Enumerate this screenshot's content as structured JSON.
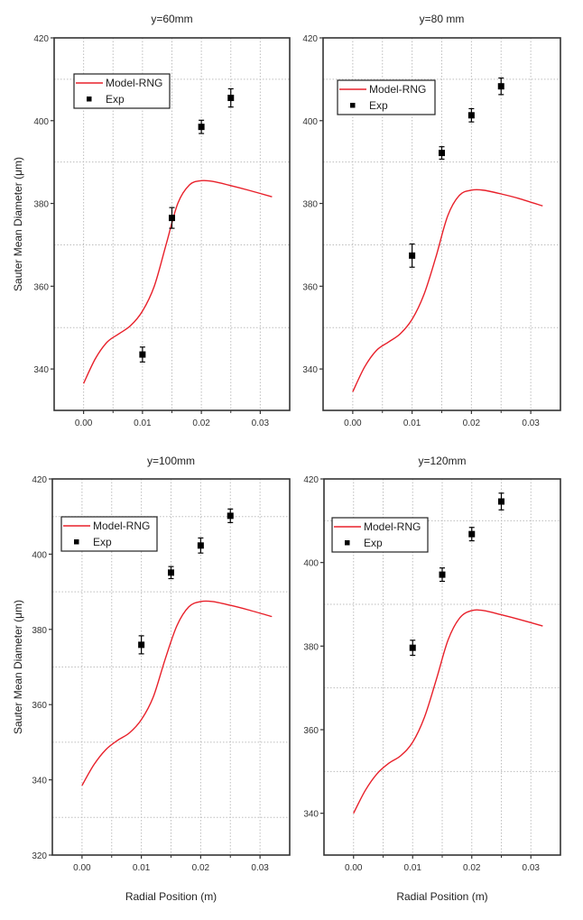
{
  "chart_data": [
    {
      "type": "line",
      "title": "y=60mm",
      "xlabel": "",
      "ylabel": "Sauter Mean Diameter (μm)",
      "xlim": [
        -0.005,
        0.035
      ],
      "ylim": [
        330,
        420
      ],
      "xticks": [
        "0.00",
        "0.01",
        "0.02",
        "0.03"
      ],
      "xtick_values": [
        0,
        0.01,
        0.02,
        0.03
      ],
      "yticks": [
        "340",
        "360",
        "380",
        "400",
        "420"
      ],
      "ytick_values": [
        340,
        360,
        380,
        400,
        420
      ],
      "grid": true,
      "legend": {
        "placement": "upper-left",
        "entries": [
          "Model-RNG",
          "Exp"
        ]
      },
      "series": [
        {
          "name": "Model-RNG",
          "kind": "line",
          "color": "#e8202a",
          "x": [
            0,
            0.002,
            0.004,
            0.006,
            0.008,
            0.01,
            0.012,
            0.014,
            0.016,
            0.018,
            0.02,
            0.022,
            0.025,
            0.028,
            0.032
          ],
          "y": [
            336.5,
            342.5,
            346.5,
            348.5,
            350.5,
            354,
            360,
            370,
            380,
            384.5,
            385.5,
            385.3,
            384.3,
            383.2,
            381.6
          ]
        },
        {
          "name": "Exp",
          "kind": "scatter",
          "color": "#000000",
          "x": [
            0.01,
            0.015,
            0.02,
            0.025
          ],
          "y": [
            343.5,
            376.5,
            398.5,
            405.5
          ],
          "err": [
            1.8,
            2.5,
            1.6,
            2.2
          ]
        }
      ]
    },
    {
      "type": "line",
      "title": "y=80 mm",
      "xlabel": "",
      "ylabel": "",
      "xlim": [
        -0.005,
        0.035
      ],
      "ylim": [
        330,
        420
      ],
      "xticks": [
        "0.00",
        "0.01",
        "0.02",
        "0.03"
      ],
      "xtick_values": [
        0,
        0.01,
        0.02,
        0.03
      ],
      "yticks": [
        "340",
        "360",
        "380",
        "400",
        "420"
      ],
      "ytick_values": [
        340,
        360,
        380,
        400,
        420
      ],
      "grid": true,
      "legend": {
        "placement": "upper-left",
        "entries": [
          "Model-RNG",
          "Exp"
        ]
      },
      "series": [
        {
          "name": "Model-RNG",
          "kind": "line",
          "color": "#e8202a",
          "x": [
            0,
            0.002,
            0.004,
            0.006,
            0.008,
            0.01,
            0.012,
            0.014,
            0.016,
            0.018,
            0.02,
            0.022,
            0.025,
            0.028,
            0.032
          ],
          "y": [
            334.5,
            340.5,
            344.5,
            346.5,
            348.5,
            352,
            358,
            367,
            377,
            382,
            383.2,
            383.2,
            382.3,
            381.2,
            379.4
          ]
        },
        {
          "name": "Exp",
          "kind": "scatter",
          "color": "#000000",
          "x": [
            0.01,
            0.015,
            0.02,
            0.025
          ],
          "y": [
            367.4,
            392.2,
            401.3,
            408.3
          ],
          "err": [
            2.8,
            1.5,
            1.6,
            2.0
          ]
        }
      ]
    },
    {
      "type": "line",
      "title": "y=100mm",
      "xlabel": "Radial Position (m)",
      "ylabel": "Sauter Mean Diameter (μm)",
      "xlim": [
        -0.005,
        0.035
      ],
      "ylim": [
        320,
        420
      ],
      "xticks": [
        "0.00",
        "0.01",
        "0.02",
        "0.03"
      ],
      "xtick_values": [
        0,
        0.01,
        0.02,
        0.03
      ],
      "yticks": [
        "320",
        "340",
        "360",
        "380",
        "400",
        "420"
      ],
      "ytick_values": [
        320,
        340,
        360,
        380,
        400,
        420
      ],
      "grid": true,
      "legend": {
        "placement": "upper-left",
        "entries": [
          "Model-RNG",
          "Exp"
        ]
      },
      "series": [
        {
          "name": "Model-RNG",
          "kind": "line",
          "color": "#e8202a",
          "x": [
            0,
            0.002,
            0.004,
            0.006,
            0.008,
            0.01,
            0.012,
            0.014,
            0.016,
            0.018,
            0.02,
            0.022,
            0.025,
            0.028,
            0.032
          ],
          "y": [
            338.5,
            344,
            348,
            350.5,
            352.5,
            356,
            362,
            372,
            381,
            386,
            387.4,
            387.4,
            386.4,
            385.2,
            383.4
          ]
        },
        {
          "name": "Exp",
          "kind": "scatter",
          "color": "#000000",
          "x": [
            0.01,
            0.015,
            0.02,
            0.025
          ],
          "y": [
            375.9,
            395.1,
            402.3,
            410.2
          ],
          "err": [
            2.4,
            1.6,
            2.0,
            1.8
          ]
        }
      ]
    },
    {
      "type": "line",
      "title": "y=120mm",
      "xlabel": "Radial Position (m)",
      "ylabel": "",
      "xlim": [
        -0.005,
        0.035
      ],
      "ylim": [
        330,
        420
      ],
      "xticks": [
        "0.00",
        "0.01",
        "0.02",
        "0.03"
      ],
      "xtick_values": [
        0,
        0.01,
        0.02,
        0.03
      ],
      "yticks": [
        "340",
        "360",
        "380",
        "400",
        "420"
      ],
      "ytick_values": [
        340,
        360,
        380,
        400,
        420
      ],
      "grid": true,
      "legend": {
        "placement": "upper-left",
        "entries": [
          "Model-RNG",
          "Exp"
        ]
      },
      "series": [
        {
          "name": "Model-RNG",
          "kind": "line",
          "color": "#e8202a",
          "x": [
            0,
            0.002,
            0.004,
            0.006,
            0.008,
            0.01,
            0.012,
            0.014,
            0.016,
            0.018,
            0.02,
            0.022,
            0.025,
            0.028,
            0.032
          ],
          "y": [
            340,
            345.5,
            349.5,
            352,
            353.8,
            357,
            363,
            372,
            381.5,
            386.8,
            388.5,
            388.5,
            387.5,
            386.4,
            384.8
          ]
        },
        {
          "name": "Exp",
          "kind": "scatter",
          "color": "#000000",
          "x": [
            0.01,
            0.015,
            0.02,
            0.025
          ],
          "y": [
            379.6,
            397.1,
            406.8,
            414.6
          ],
          "err": [
            1.8,
            1.6,
            1.6,
            2.0
          ]
        }
      ]
    }
  ]
}
